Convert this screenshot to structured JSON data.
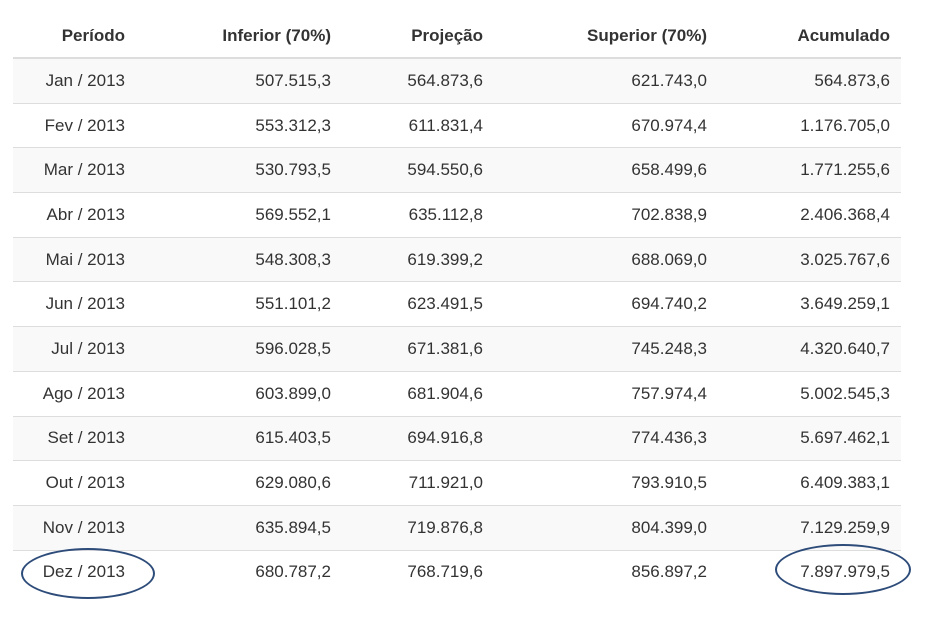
{
  "table": {
    "headers": [
      "Período",
      "Inferior (70%)",
      "Projeção",
      "Superior (70%)",
      "Acumulado"
    ],
    "rows": [
      [
        "Jan / 2013",
        "507.515,3",
        "564.873,6",
        "621.743,0",
        "564.873,6"
      ],
      [
        "Fev / 2013",
        "553.312,3",
        "611.831,4",
        "670.974,4",
        "1.176.705,0"
      ],
      [
        "Mar / 2013",
        "530.793,5",
        "594.550,6",
        "658.499,6",
        "1.771.255,6"
      ],
      [
        "Abr / 2013",
        "569.552,1",
        "635.112,8",
        "702.838,9",
        "2.406.368,4"
      ],
      [
        "Mai / 2013",
        "548.308,3",
        "619.399,2",
        "688.069,0",
        "3.025.767,6"
      ],
      [
        "Jun / 2013",
        "551.101,2",
        "623.491,5",
        "694.740,2",
        "3.649.259,1"
      ],
      [
        "Jul / 2013",
        "596.028,5",
        "671.381,6",
        "745.248,3",
        "4.320.640,7"
      ],
      [
        "Ago / 2013",
        "603.899,0",
        "681.904,6",
        "757.974,4",
        "5.002.545,3"
      ],
      [
        "Set / 2013",
        "615.403,5",
        "694.916,8",
        "774.436,3",
        "5.697.462,1"
      ],
      [
        "Out / 2013",
        "629.080,6",
        "711.921,0",
        "793.910,5",
        "6.409.383,1"
      ],
      [
        "Nov / 2013",
        "635.894,5",
        "719.876,8",
        "804.399,0",
        "7.129.259,9"
      ],
      [
        "Dez / 2013",
        "680.787,2",
        "768.719,6",
        "856.897,2",
        "7.897.979,5"
      ]
    ]
  },
  "annotations": {
    "ellipse_color": "#2e4c7a"
  }
}
